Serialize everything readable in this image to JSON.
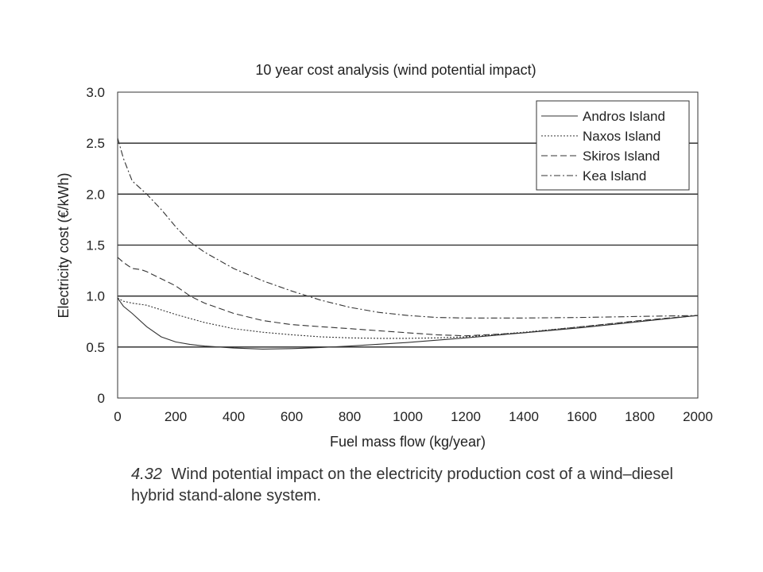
{
  "caption": {
    "figure_number": "4.32",
    "text": "Wind potential impact on the electricity production cost of a wind–diesel hybrid stand-alone system."
  },
  "chart_data": {
    "type": "line",
    "title": "10 year cost analysis (wind potential impact)",
    "xlabel": "Fuel mass flow (kg/year)",
    "ylabel": "Electricity cost (€/kWh)",
    "xlim": [
      0,
      2000
    ],
    "ylim": [
      0,
      3.0
    ],
    "xticks": [
      0,
      200,
      400,
      600,
      800,
      1000,
      1200,
      1400,
      1600,
      1800,
      2000
    ],
    "yticks": [
      0,
      0.5,
      1.0,
      1.5,
      2.0,
      2.5,
      3.0
    ],
    "ytick_labels": [
      "0",
      "0.5",
      "1.0",
      "1.5",
      "2.0",
      "2.5",
      "3.0"
    ],
    "grid": "horizontal",
    "legend_position": "top-right",
    "series": [
      {
        "name": "Andros Island",
        "style": "solid",
        "x": [
          0,
          20,
          50,
          100,
          150,
          200,
          250,
          300,
          400,
          500,
          600,
          700,
          800,
          1000,
          1200,
          1400,
          1600,
          1800,
          2000
        ],
        "y": [
          0.98,
          0.9,
          0.83,
          0.7,
          0.6,
          0.55,
          0.525,
          0.51,
          0.49,
          0.48,
          0.485,
          0.495,
          0.51,
          0.545,
          0.59,
          0.64,
          0.69,
          0.75,
          0.81
        ]
      },
      {
        "name": "Naxos Island",
        "style": "dotted",
        "x": [
          0,
          20,
          50,
          100,
          200,
          300,
          400,
          500,
          600,
          700,
          800,
          900,
          1000,
          1100,
          1200,
          1400,
          1600,
          1800,
          2000
        ],
        "y": [
          0.98,
          0.95,
          0.93,
          0.91,
          0.82,
          0.74,
          0.68,
          0.645,
          0.62,
          0.6,
          0.59,
          0.585,
          0.585,
          0.59,
          0.6,
          0.645,
          0.7,
          0.755,
          0.81
        ]
      },
      {
        "name": "Skiros Island",
        "style": "dashed",
        "x": [
          0,
          20,
          50,
          80,
          100,
          200,
          250,
          300,
          400,
          500,
          600,
          700,
          800,
          900,
          1000,
          1100,
          1200,
          1400,
          1600,
          1800,
          2000
        ],
        "y": [
          1.38,
          1.33,
          1.27,
          1.26,
          1.24,
          1.1,
          1.0,
          0.93,
          0.83,
          0.76,
          0.72,
          0.7,
          0.68,
          0.66,
          0.64,
          0.62,
          0.61,
          0.64,
          0.7,
          0.76,
          0.81
        ]
      },
      {
        "name": "Kea Island",
        "style": "dashdot",
        "x": [
          0,
          20,
          50,
          100,
          150,
          200,
          250,
          300,
          400,
          500,
          600,
          700,
          800,
          900,
          1000,
          1100,
          1200,
          1400,
          1600,
          1800,
          2000
        ],
        "y": [
          2.55,
          2.35,
          2.13,
          2.0,
          1.85,
          1.68,
          1.53,
          1.43,
          1.27,
          1.15,
          1.05,
          0.96,
          0.89,
          0.84,
          0.81,
          0.79,
          0.785,
          0.785,
          0.79,
          0.8,
          0.81
        ]
      }
    ]
  }
}
